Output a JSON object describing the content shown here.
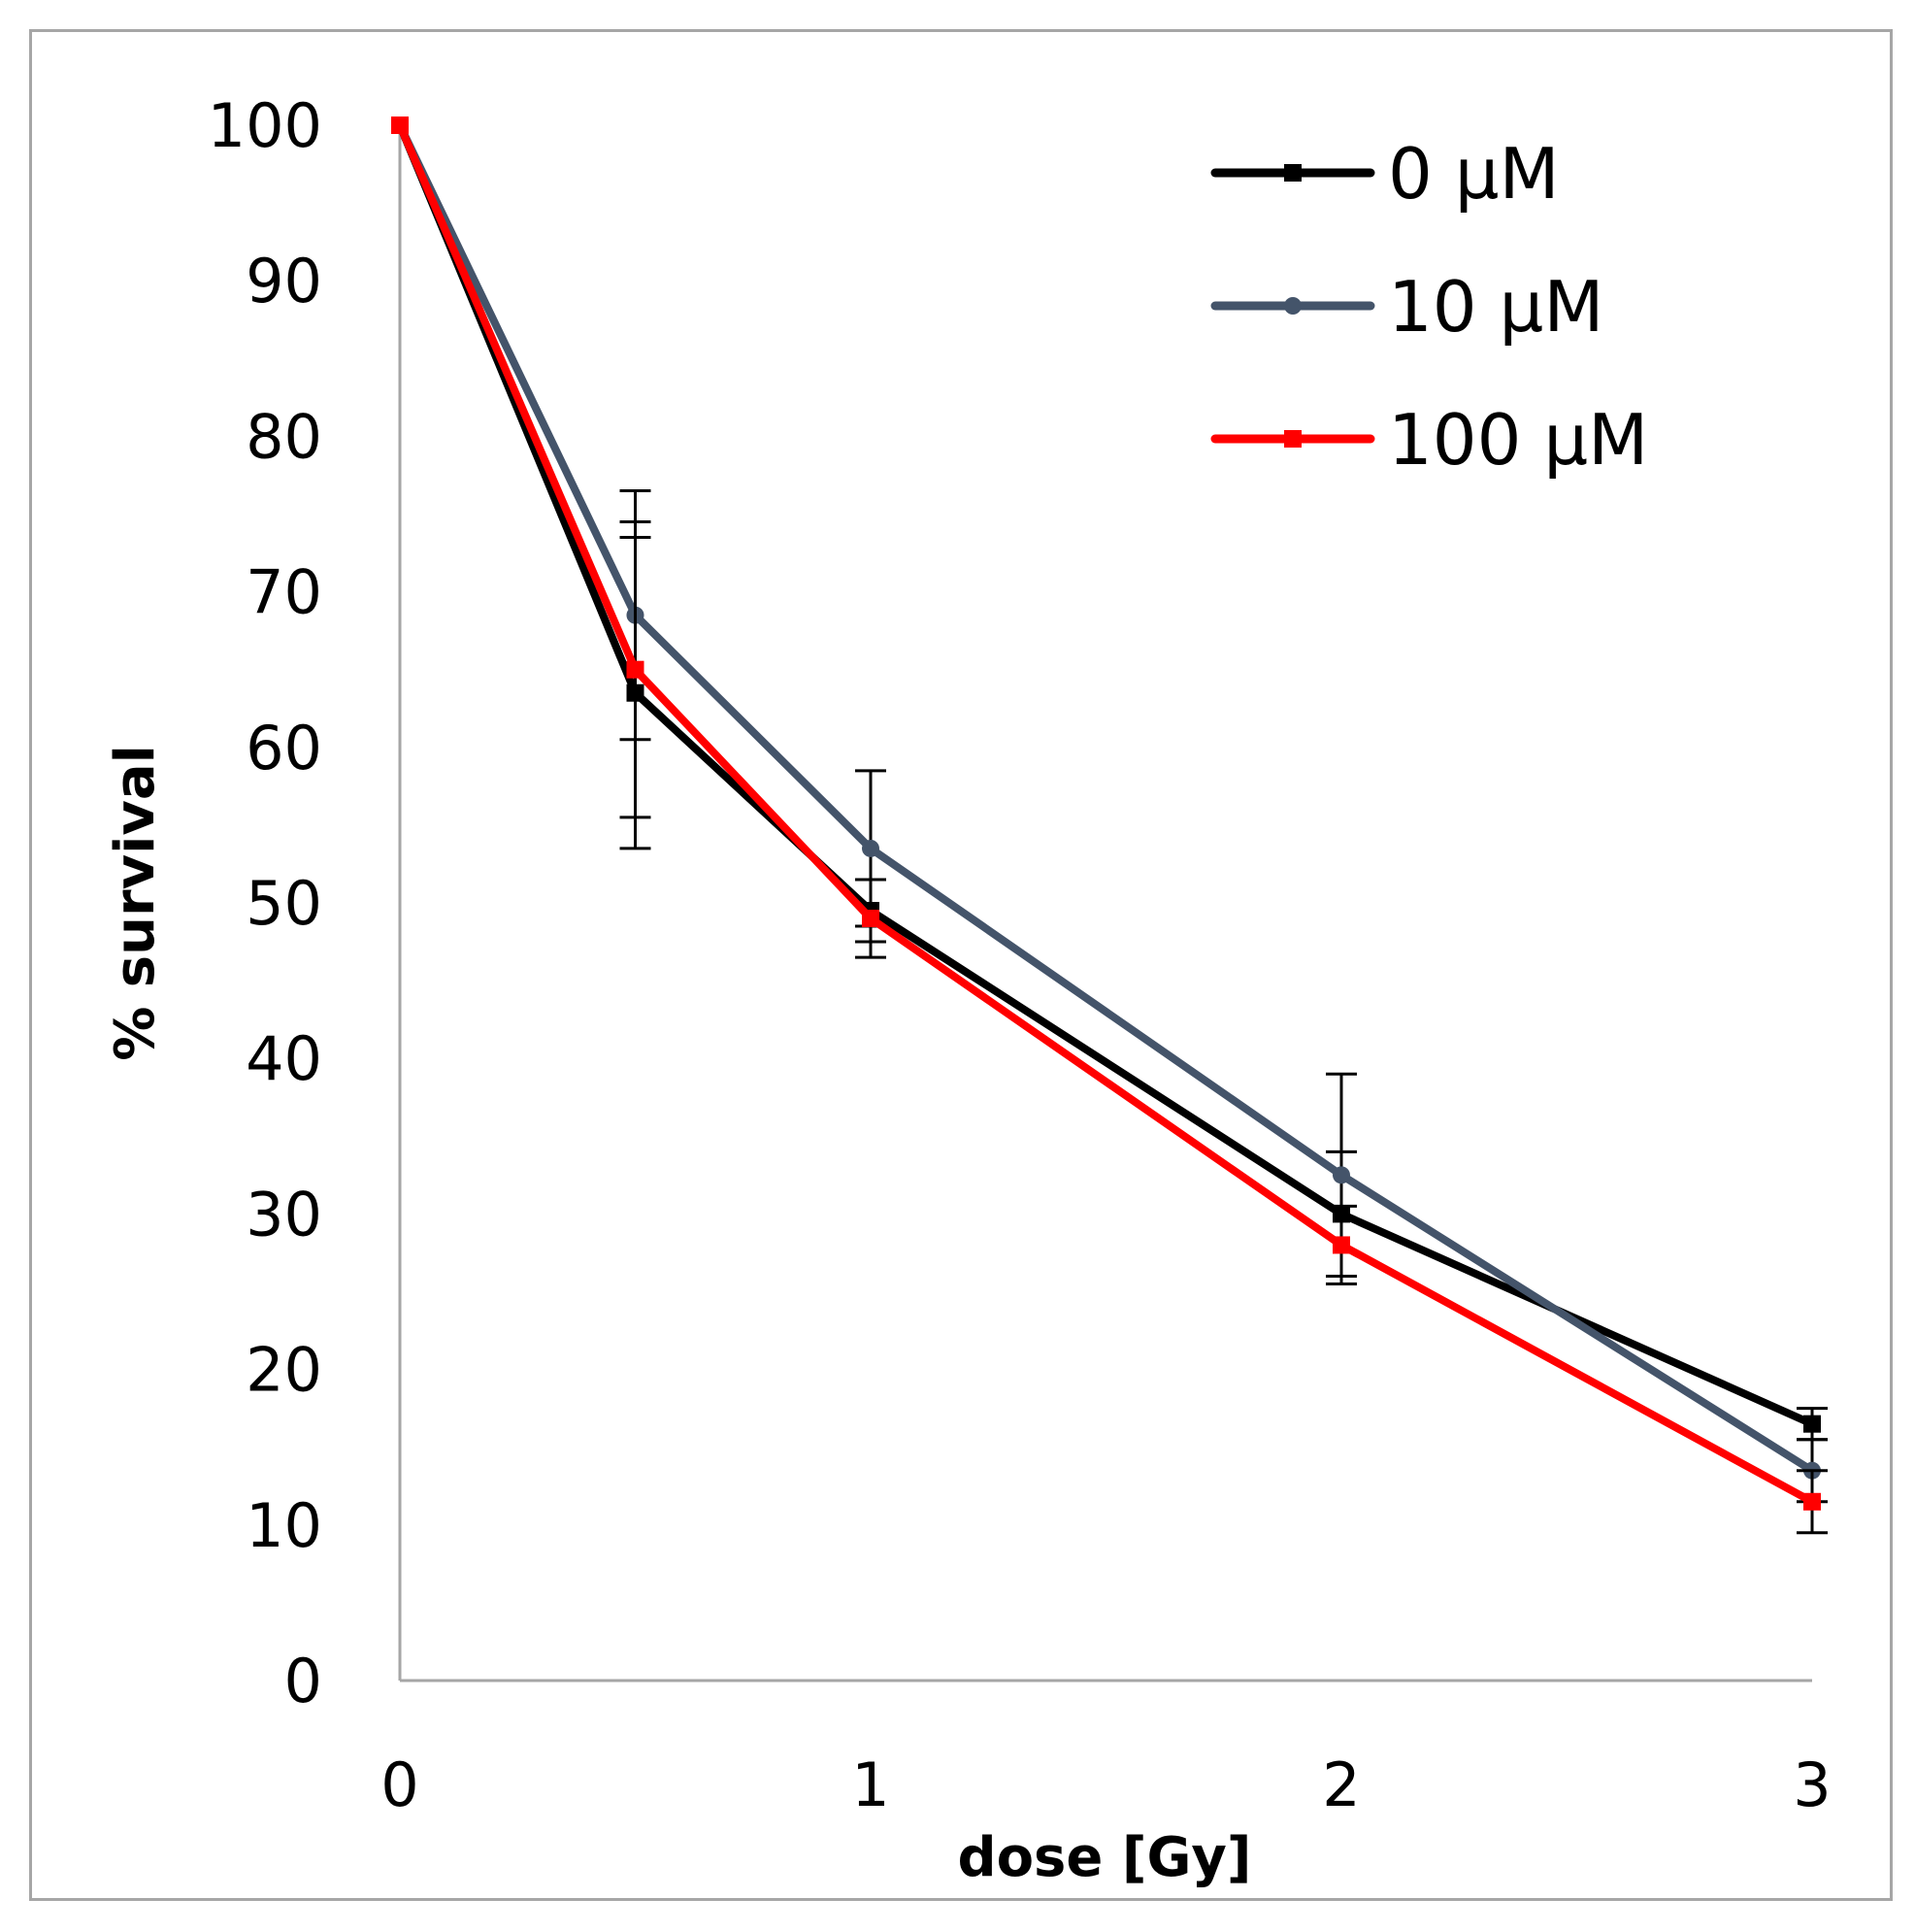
{
  "chart_data": {
    "type": "line",
    "title": "",
    "xlabel": "dose [Gy]",
    "ylabel": "% survival",
    "xlim": [
      0,
      3
    ],
    "ylim": [
      0,
      100
    ],
    "x_ticks": [
      "0",
      "1",
      "2",
      "3"
    ],
    "y_ticks": [
      "0",
      "10",
      "20",
      "30",
      "40",
      "50",
      "60",
      "70",
      "80",
      "90",
      "100"
    ],
    "grid": false,
    "legend_position": "top-right",
    "x": [
      0,
      0.5,
      1,
      2,
      3
    ],
    "series": [
      {
        "name": "0 µM",
        "color": "#000000",
        "marker": "square",
        "values": [
          100,
          63.5,
          49.5,
          30,
          16.5
        ],
        "errors": [
          0,
          10,
          2,
          4,
          1
        ]
      },
      {
        "name": "10 µM",
        "color": "#44546a",
        "marker": "circle",
        "values": [
          100,
          68.5,
          53.5,
          32.5,
          13.5
        ],
        "errors": [
          0,
          8,
          5,
          6.5,
          2
        ]
      },
      {
        "name": "100 µM",
        "color": "#ff0000",
        "marker": "square",
        "values": [
          100,
          65,
          49,
          28,
          11.5
        ],
        "errors": [
          0,
          9.5,
          2.5,
          2.5,
          2
        ]
      }
    ]
  }
}
